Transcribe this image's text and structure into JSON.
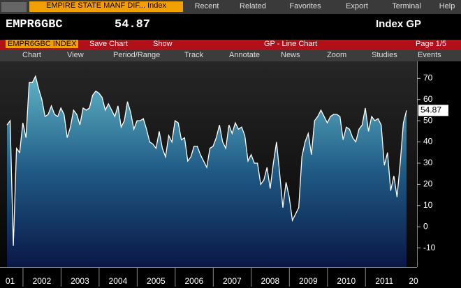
{
  "toolbar": {
    "security": "EMPIRE STATE MANF DIF... Index",
    "menus": [
      "Recent",
      "Related",
      "Favorites",
      "Export",
      "Terminal",
      "Help"
    ]
  },
  "header": {
    "ticker": "EMPR6GBC",
    "price": "54.87",
    "function": "Index GP"
  },
  "function_bar": {
    "security": "EMPR6GBC INDEX",
    "actions": [
      "Save Chart",
      "Show"
    ],
    "title": "GP - Line Chart",
    "page": "Page 1/5"
  },
  "tools": [
    "Chart",
    "View",
    "Period/Range",
    "Track",
    "Annotate",
    "News",
    "Zoom",
    "Studies",
    "Events"
  ],
  "chart_data": {
    "type": "line",
    "color": "#ffffff",
    "categories": [
      null,
      "01",
      null,
      null,
      null,
      null,
      null,
      null,
      null,
      null,
      null,
      "2002",
      null,
      null,
      null,
      null,
      null,
      null,
      null,
      null,
      null,
      null,
      null,
      "2003",
      null,
      null,
      null,
      null,
      null,
      null,
      null,
      null,
      null,
      null,
      null,
      "2004",
      null,
      null,
      null,
      null,
      null,
      null,
      null,
      null,
      null,
      null,
      null,
      "2005",
      null,
      null,
      null,
      null,
      null,
      null,
      null,
      null,
      null,
      null,
      null,
      "2006",
      null,
      null,
      null,
      null,
      null,
      null,
      null,
      null,
      null,
      null,
      null,
      "2007",
      null,
      null,
      null,
      null,
      null,
      null,
      null,
      null,
      null,
      null,
      null,
      "2008",
      null,
      null,
      null,
      null,
      null,
      null,
      null,
      null,
      null,
      null,
      null,
      "2009",
      null,
      null,
      null,
      null,
      null,
      null,
      null,
      null,
      null,
      null,
      null,
      "2010",
      null,
      null,
      null,
      null,
      null,
      null,
      null,
      null,
      null,
      null,
      null,
      "2011",
      null,
      null,
      null,
      null,
      null,
      null,
      null
    ],
    "x_cut_label": "20",
    "values": [
      48,
      50,
      -9,
      37,
      35,
      49,
      42,
      68,
      68,
      71,
      65,
      60,
      52,
      53,
      57,
      53,
      52,
      56,
      53,
      42,
      47,
      55,
      53,
      48,
      56,
      55,
      56,
      62,
      64,
      63,
      61,
      55,
      58,
      55,
      52,
      57,
      47,
      50,
      59,
      54,
      46,
      50,
      50,
      51,
      46,
      40,
      39,
      37,
      45,
      37,
      33,
      43,
      40,
      50,
      49,
      41,
      42,
      31,
      33,
      38,
      38,
      34,
      31,
      28,
      37,
      38,
      42,
      48,
      40,
      37,
      48,
      44,
      49,
      46,
      47,
      43,
      31,
      34,
      30,
      30,
      20,
      22,
      28,
      18,
      30,
      40,
      25,
      9,
      21,
      14,
      3,
      6,
      9,
      33,
      40,
      44,
      34,
      50,
      52,
      55,
      52,
      49,
      52,
      53,
      53,
      52,
      41,
      47,
      46,
      42,
      40,
      46,
      48,
      56,
      45,
      52,
      50,
      51,
      48,
      29,
      35,
      17,
      24,
      14,
      30,
      49,
      54.87
    ],
    "ylim": [
      -19,
      78
    ],
    "yticks": [
      -10,
      0,
      10,
      20,
      30,
      40,
      50,
      60,
      70
    ]
  }
}
